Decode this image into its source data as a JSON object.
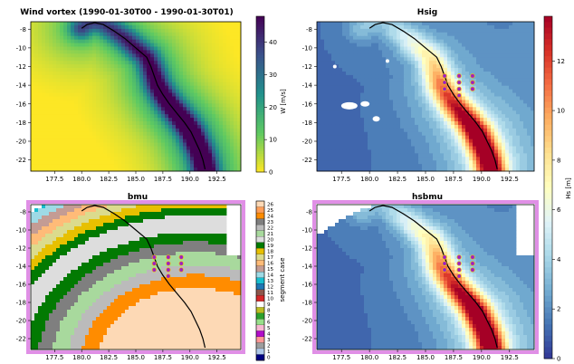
{
  "colors": {
    "bmu_frame": "#e08fe6",
    "track": "#000000",
    "marker_fill": "#a020c0",
    "marker_edge": "#f2c300"
  },
  "chart_data": [
    {
      "id": "wind",
      "type": "heatmap",
      "title": "Wind vortex  (1990-01-30T00 - 1990-01-30T01)",
      "xlim": [
        175.3,
        194.7
      ],
      "ylim": [
        -23.2,
        -7.2
      ],
      "xticks": [
        "177.5",
        "180.0",
        "182.5",
        "185.0",
        "187.5",
        "190.0",
        "192.5"
      ],
      "yticks": [
        "-8",
        "-10",
        "-12",
        "-14",
        "-16",
        "-18",
        "-20",
        "-22"
      ],
      "colormap": "viridis",
      "colorbar": {
        "label": "W [m/s]",
        "min": 0,
        "max": 48,
        "ticks": [
          "0",
          "10",
          "20",
          "30",
          "40"
        ]
      }
    },
    {
      "id": "hsig",
      "type": "heatmap",
      "title": "Hsig",
      "xlim": [
        175.3,
        194.7
      ],
      "ylim": [
        -23.2,
        -7.2
      ],
      "xticks": [
        "177.5",
        "180.0",
        "182.5",
        "185.0",
        "187.5",
        "190.0",
        "192.5"
      ],
      "yticks": [
        "-8",
        "-10",
        "-12",
        "-14",
        "-16",
        "-18",
        "-20",
        "-22"
      ],
      "colormap": "RdYlBu_r"
    },
    {
      "id": "bmu",
      "type": "heatmap",
      "title": "bmu",
      "xlim": [
        175.3,
        194.7
      ],
      "ylim": [
        -23.2,
        -7.2
      ],
      "xticks": [
        "177.5",
        "180.0",
        "182.5",
        "185.0",
        "187.5",
        "190.0",
        "192.5"
      ],
      "yticks": [
        "-8",
        "-10",
        "-12",
        "-14",
        "-16",
        "-18",
        "-20",
        "-22"
      ],
      "colormap": "categorical",
      "colorbar": {
        "label": "segment case",
        "ticks": [
          "0",
          "1",
          "2",
          "3",
          "4",
          "5",
          "6",
          "7",
          "8",
          "9",
          "10",
          "11",
          "12",
          "13",
          "14",
          "15",
          "16",
          "17",
          "18",
          "19",
          "20",
          "21",
          "22",
          "23",
          "24",
          "25",
          "26"
        ],
        "colors": [
          "#000080",
          "#aec7e8",
          "#9d9d9d",
          "#ff9896",
          "#b10dc9",
          "#f7b6d2",
          "#98df8a",
          "#2ca02c",
          "#bcbd22",
          "#ffffff",
          "#d62728",
          "#8c564b",
          "#1f77b4",
          "#17becf",
          "#9edae5",
          "#c49c94",
          "#ffbb78",
          "#dbdb8d",
          "#e7c000",
          "#027a02",
          "#dddddd",
          "#a8d99d",
          "#bbbbbb",
          "#7f7f7f",
          "#ff8c00",
          "#ff9f5a",
          "#fdd9b5"
        ]
      }
    },
    {
      "id": "hsbmu",
      "type": "heatmap",
      "title": "hsbmu",
      "xlim": [
        175.3,
        194.7
      ],
      "ylim": [
        -23.2,
        -7.2
      ],
      "xticks": [
        "177.5",
        "180.0",
        "182.5",
        "185.0",
        "187.5",
        "190.0",
        "192.5"
      ],
      "yticks": [
        "-8",
        "-10",
        "-12",
        "-14",
        "-16",
        "-18",
        "-20",
        "-22"
      ],
      "colormap": "RdYlBu_r",
      "colorbar": {
        "label": "Hs [m]",
        "min": 0,
        "max": 13.8,
        "ticks": [
          "0",
          "2",
          "4",
          "6",
          "8",
          "10",
          "12"
        ]
      }
    }
  ],
  "track": [
    [
      180.0,
      -7.9
    ],
    [
      180.5,
      -7.5
    ],
    [
      181.2,
      -7.3
    ],
    [
      182.0,
      -7.5
    ],
    [
      183.0,
      -8.2
    ],
    [
      184.0,
      -9.0
    ],
    [
      185.0,
      -10.0
    ],
    [
      186.0,
      -11.0
    ],
    [
      186.4,
      -12.0
    ],
    [
      186.7,
      -13.0
    ],
    [
      187.0,
      -14.0
    ],
    [
      187.5,
      -15.0
    ],
    [
      188.1,
      -16.0
    ],
    [
      188.8,
      -17.0
    ],
    [
      189.5,
      -18.0
    ],
    [
      190.1,
      -19.0
    ],
    [
      190.5,
      -20.0
    ],
    [
      190.9,
      -21.0
    ],
    [
      191.2,
      -22.0
    ],
    [
      191.4,
      -23.0
    ]
  ],
  "points": [
    [
      186.7,
      -13.0
    ],
    [
      186.7,
      -13.7
    ],
    [
      186.7,
      -14.4
    ],
    [
      188.0,
      -13.0
    ],
    [
      188.0,
      -13.7
    ],
    [
      188.0,
      -14.4
    ],
    [
      188.0,
      -15.1
    ],
    [
      189.2,
      -13.0
    ],
    [
      189.2,
      -13.7
    ],
    [
      189.2,
      -14.4
    ]
  ]
}
